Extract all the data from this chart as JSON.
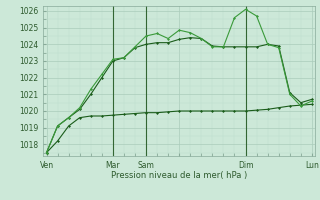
{
  "xlabel": "Pression niveau de la mer( hPa )",
  "bg_color": "#cce8d8",
  "grid_major_color": "#aaccbb",
  "grid_minor_color": "#bbddcc",
  "line_color_dark": "#1a5c1a",
  "line_color_light": "#3a9a3a",
  "vline_color": "#336633",
  "ylim": [
    1017.3,
    1026.3
  ],
  "yticks": [
    1018,
    1019,
    1020,
    1021,
    1022,
    1023,
    1024,
    1025,
    1026
  ],
  "xlim": [
    -0.3,
    24.3
  ],
  "xtick_positions": [
    0,
    6,
    9,
    12,
    18,
    24
  ],
  "xtick_labels": [
    "Ven",
    "Mar",
    "Sam",
    "",
    "Dim",
    "Lun"
  ],
  "vlines": [
    6,
    9,
    18
  ],
  "series1_x": [
    0,
    1,
    2,
    3,
    4,
    5,
    6,
    7,
    8,
    9,
    10,
    11,
    12,
    13,
    14,
    15,
    16,
    17,
    18,
    19,
    20,
    21,
    22,
    23,
    24
  ],
  "series1_y": [
    1017.5,
    1018.2,
    1019.1,
    1019.6,
    1019.7,
    1019.7,
    1019.75,
    1019.8,
    1019.85,
    1019.9,
    1019.9,
    1019.95,
    1020.0,
    1020.0,
    1020.0,
    1020.0,
    1020.0,
    1020.0,
    1020.0,
    1020.05,
    1020.1,
    1020.2,
    1020.3,
    1020.35,
    1020.4
  ],
  "series2_x": [
    0,
    1,
    2,
    3,
    4,
    5,
    6,
    7,
    8,
    9,
    10,
    11,
    12,
    13,
    14,
    15,
    16,
    17,
    18,
    19,
    20,
    21,
    22,
    23,
    24
  ],
  "series2_y": [
    1017.5,
    1019.1,
    1019.6,
    1020.1,
    1021.0,
    1022.0,
    1023.0,
    1023.2,
    1023.8,
    1024.0,
    1024.1,
    1024.1,
    1024.3,
    1024.4,
    1024.35,
    1023.9,
    1023.85,
    1023.85,
    1023.85,
    1023.85,
    1024.0,
    1023.9,
    1021.1,
    1020.5,
    1020.7
  ],
  "series3_x": [
    0,
    1,
    2,
    3,
    4,
    5,
    6,
    7,
    8,
    9,
    10,
    11,
    12,
    13,
    14,
    15,
    16,
    17,
    18,
    19,
    20,
    21,
    22,
    23,
    24
  ],
  "series3_y": [
    1017.5,
    1019.1,
    1019.6,
    1020.2,
    1021.3,
    1022.2,
    1023.1,
    1023.2,
    1023.85,
    1024.5,
    1024.65,
    1024.35,
    1024.85,
    1024.7,
    1024.35,
    1023.85,
    1023.85,
    1025.6,
    1026.1,
    1025.7,
    1024.0,
    1023.8,
    1021.0,
    1020.3,
    1020.6
  ]
}
